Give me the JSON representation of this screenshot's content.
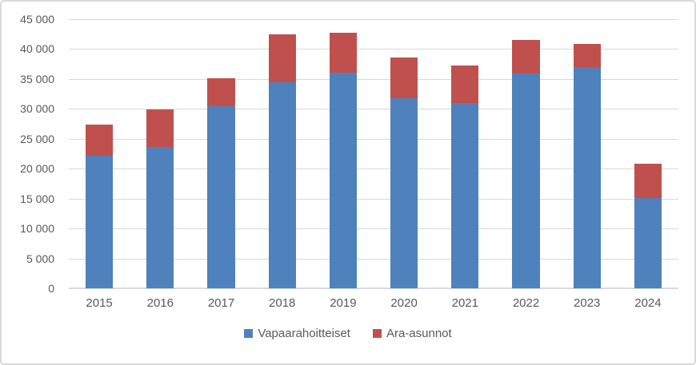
{
  "chart_data": {
    "type": "bar",
    "stacked": true,
    "title": "",
    "xlabel": "",
    "ylabel": "",
    "categories": [
      "2015",
      "2016",
      "2017",
      "2018",
      "2019",
      "2020",
      "2021",
      "2022",
      "2023",
      "2024"
    ],
    "series": [
      {
        "name": "Vapaarahoitteiset",
        "color": "#4F81BD",
        "values": [
          22200,
          23600,
          30500,
          34500,
          36000,
          31800,
          31000,
          35900,
          37000,
          15100
        ]
      },
      {
        "name": "Ara-asunnot",
        "color": "#C0504D",
        "values": [
          5200,
          6300,
          4600,
          7900,
          6700,
          6800,
          6300,
          5600,
          3900,
          5700
        ]
      }
    ],
    "ylim": [
      0,
      45000
    ],
    "y_tick_step": 5000,
    "y_tick_values": [
      0,
      5000,
      10000,
      15000,
      20000,
      25000,
      30000,
      35000,
      40000,
      45000
    ],
    "y_tick_labels": [
      "0",
      "5 000",
      "10 000",
      "15 000",
      "20 000",
      "25 000",
      "30 000",
      "35 000",
      "40 000",
      "45 000"
    ],
    "grid": true,
    "legend_position": "bottom",
    "bar_width_fraction": 0.45
  },
  "colors": {
    "gridline": "#D9D9D9",
    "axis_line": "#D9D9D9",
    "frame_border": "#D9D9D9",
    "tick_text": "#595959",
    "background": "#FFFFFF"
  }
}
